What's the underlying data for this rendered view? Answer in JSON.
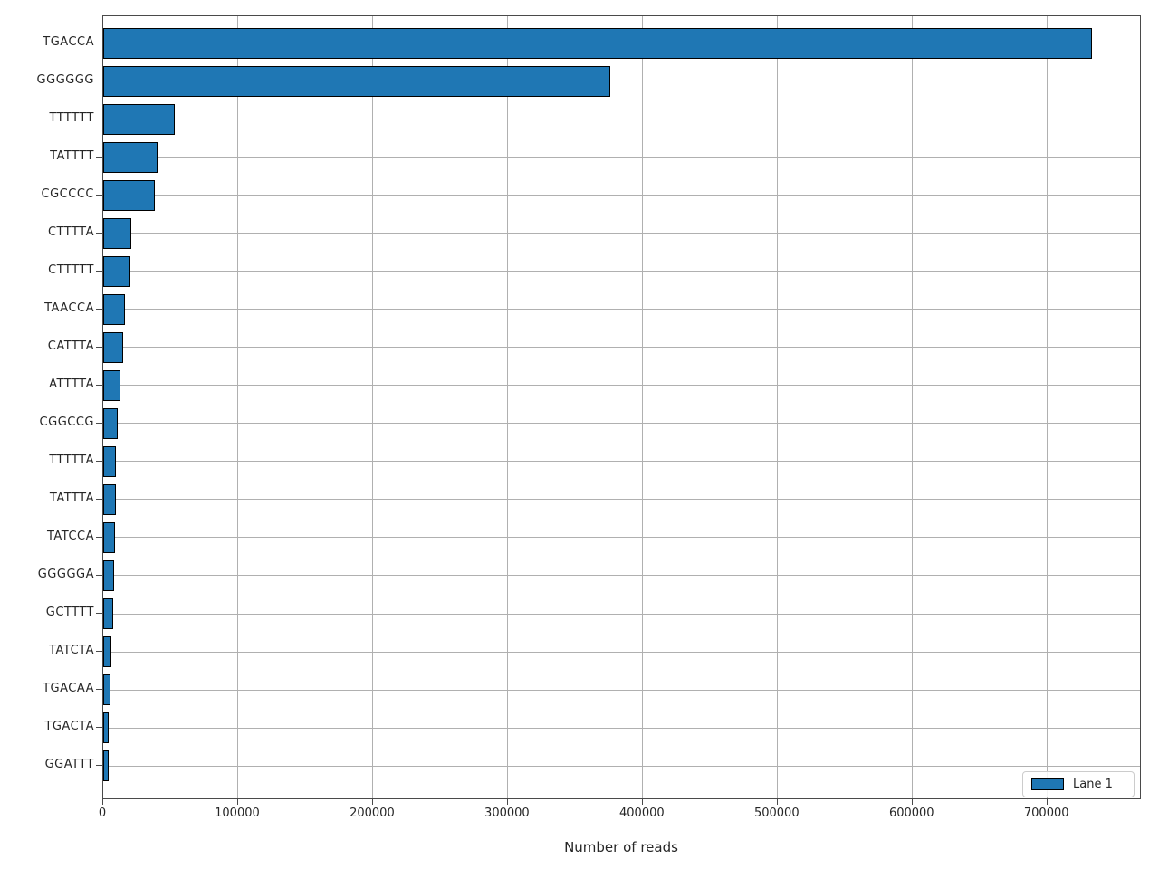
{
  "chart_data": {
    "type": "bar",
    "orientation": "horizontal",
    "title": "",
    "xlabel": "Number of reads",
    "ylabel": "",
    "categories": [
      "TGACCA",
      "GGGGGG",
      "TTTTTT",
      "TATTTT",
      "CGCCCC",
      "CTTTTA",
      "CTTTTT",
      "TAACCA",
      "CATTTA",
      "ATTTTA",
      "CGGCCG",
      "TTTTTA",
      "TATTTA",
      "TATCCA",
      "GGGGGA",
      "GCTTTT",
      "TATCTA",
      "TGACAA",
      "TGACTA",
      "GGATTT"
    ],
    "values": [
      733000,
      376000,
      53000,
      40000,
      38000,
      21000,
      20000,
      16000,
      14700,
      12700,
      11000,
      9700,
      9300,
      8500,
      7800,
      7500,
      6000,
      5100,
      4300,
      4000
    ],
    "xlim": [
      0,
      770000
    ],
    "xticks": [
      0,
      100000,
      200000,
      300000,
      400000,
      500000,
      600000,
      700000
    ],
    "grid": true,
    "grid_axes": "both",
    "legend": {
      "position": "lower right",
      "entries": [
        {
          "label": "Lane 1",
          "color": "#1f77b4"
        }
      ]
    },
    "colors": {
      "bar_fill": "#1f77b4",
      "bar_edge": "#000000",
      "grid": "#b0b0b0",
      "spine": "#4a4a4a",
      "background": "#ffffff"
    }
  }
}
